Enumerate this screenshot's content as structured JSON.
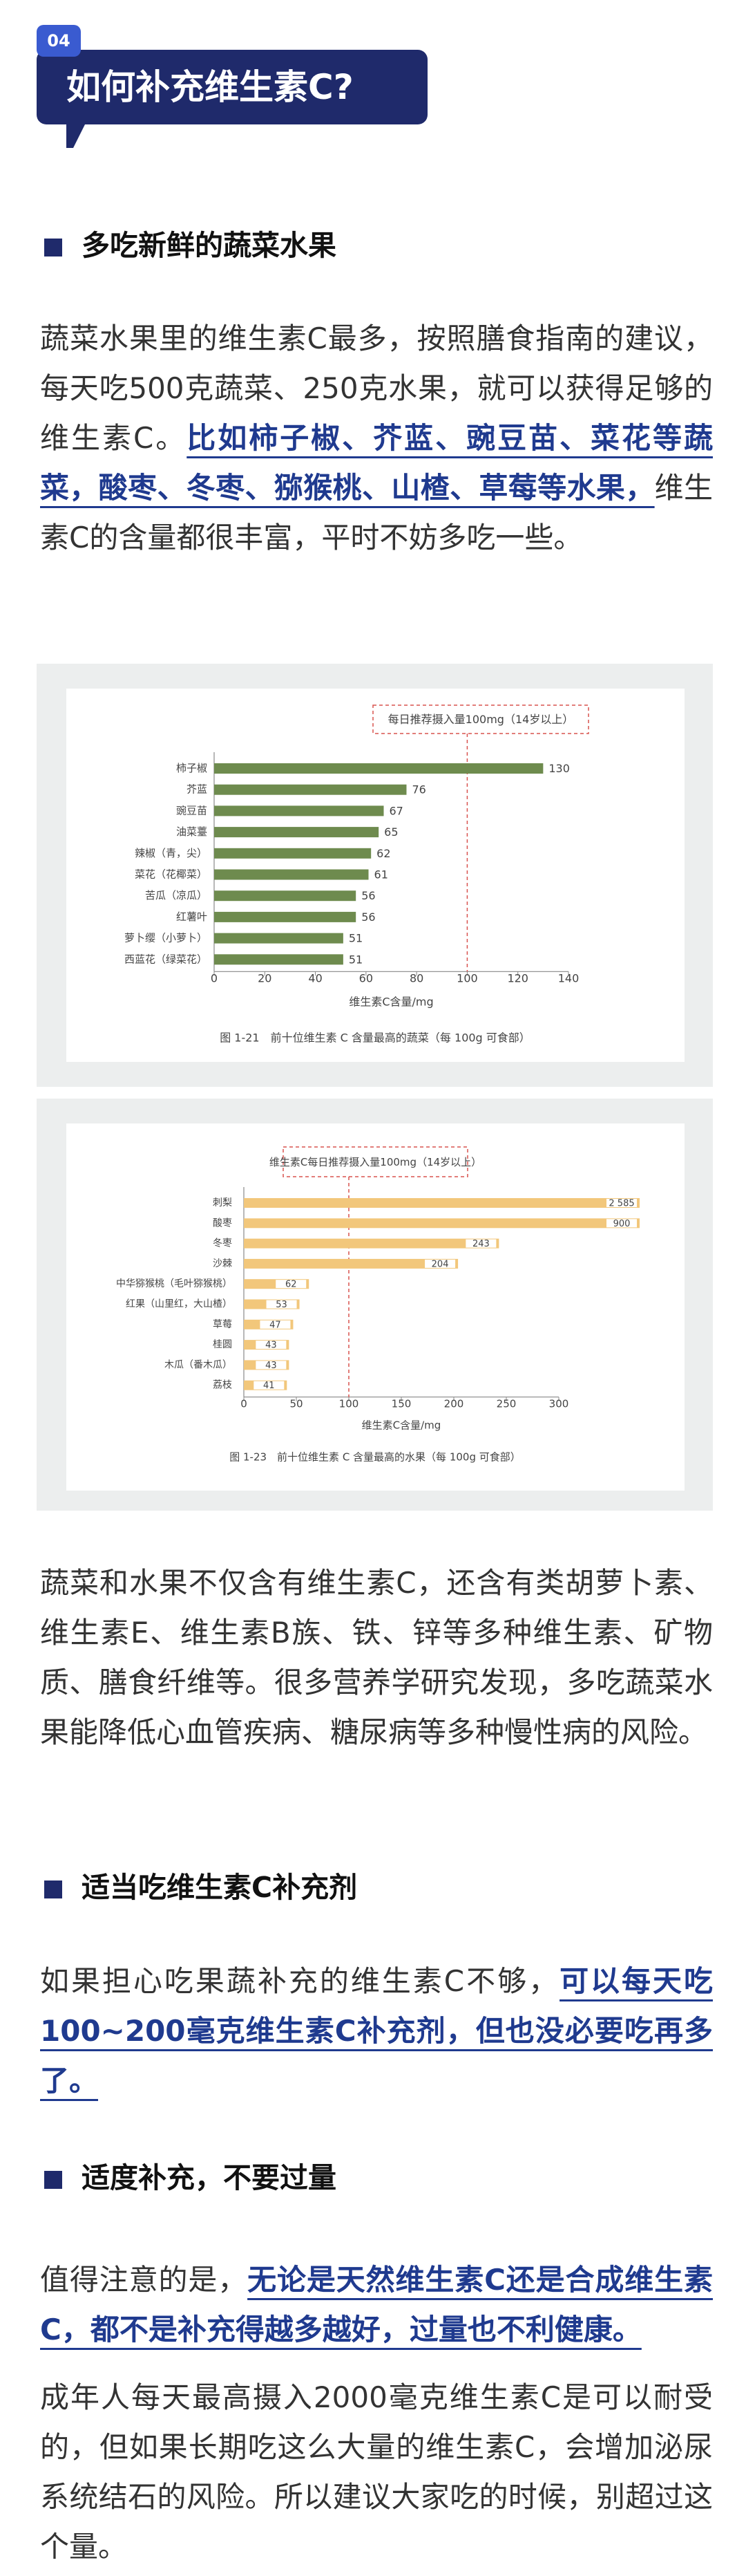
{
  "header": {
    "badge": "04",
    "title": "如何补充维生素C?"
  },
  "sections": [
    {
      "heading": "多吃新鲜的蔬菜水果",
      "paragraphs": [
        [
          {
            "text": "蔬菜水果里的维生素C最多，按照膳食指南的建议，每天吃500克蔬菜、250克水果，就可以获得足够的维生素C。",
            "emphasis": false
          },
          {
            "text": "比如柿子椒、芥蓝、豌豆苗、菜花等蔬菜，酸枣、冬枣、猕猴桃、山楂、草莓等水果，",
            "emphasis": true
          },
          {
            "text": "维生素C的含量都很丰富，平时不妨多吃一些。",
            "emphasis": false
          }
        ],
        [
          {
            "text": "蔬菜和水果不仅含有维生素C，还含有类胡萝卜素、维生素E、维生素B族、铁、锌等多种维生素、矿物质、膳食纤维等。很多营养学研究发现，多吃蔬菜水果能降低心血管疾病、糖尿病等多种慢性病的风险。",
            "emphasis": false
          }
        ]
      ]
    },
    {
      "heading": "适当吃维生素C补充剂",
      "paragraphs": [
        [
          {
            "text": "如果担心吃果蔬补充的维生素C不够，",
            "emphasis": false
          },
          {
            "text": "可以每天吃100~200毫克维生素C补充剂，但也没必要吃再多了。",
            "emphasis": true
          }
        ]
      ]
    },
    {
      "heading": "适度补充，不要过量",
      "paragraphs": [
        [
          {
            "text": "值得注意的是，",
            "emphasis": false
          },
          {
            "text": "无论是天然维生素C还是合成维生素C，都不是补充得越多越好，过量也不利健康。",
            "emphasis": true
          }
        ],
        [
          {
            "text": "成年人每天最高摄入2000毫克维生素C是可以耐受的，但如果长期吃这么大量的维生素C，会增加泌尿系统结石的风险。所以建议大家吃的时候，别超过这个量。",
            "emphasis": false
          }
        ]
      ]
    }
  ],
  "figures": [
    {
      "type": "bar",
      "orientation": "horizontal",
      "annotation": "每日推荐摄入量100mg（14岁以上）",
      "reference_line": 100,
      "categories": [
        "柿子椒",
        "芥蓝",
        "豌豆苗",
        "油菜薹",
        "辣椒（青，尖）",
        "菜花（花椰菜）",
        "苦瓜（凉瓜）",
        "红薯叶",
        "萝卜缨（小萝卜）",
        "西蓝花（绿菜花）"
      ],
      "values": [
        130,
        76,
        67,
        65,
        62,
        61,
        56,
        56,
        51,
        51
      ],
      "color": "#6e8b4e",
      "xlim": [
        0,
        140
      ],
      "xticks": [
        0,
        20,
        40,
        60,
        80,
        100,
        120,
        140
      ],
      "xlabel": "维生素C含量/mg",
      "caption": "图 1-21　前十位维生素 C 含量最高的蔬菜（每 100g 可食部）"
    },
    {
      "type": "bar",
      "orientation": "horizontal",
      "annotation": "维生素C每日推荐摄入量100mg（14岁以上）",
      "reference_line": 100,
      "categories": [
        "刺梨",
        "酸枣",
        "冬枣",
        "沙棘",
        "中华猕猴桃（毛叶猕猴桃）",
        "红果（山里红，大山楂）",
        "草莓",
        "桂圆",
        "木瓜（番木瓜）",
        "荔枝"
      ],
      "values": [
        2585,
        900,
        243,
        204,
        62,
        53,
        47,
        43,
        43,
        41
      ],
      "value_labels": [
        "2 585",
        "900",
        "243",
        "204",
        "62",
        "53",
        "47",
        "43",
        "43",
        "41"
      ],
      "color": "#f2c77b",
      "xlim": [
        0,
        300
      ],
      "xticks": [
        0,
        50,
        100,
        150,
        200,
        250,
        300
      ],
      "xlabel": "维生素C含量/mg",
      "caption": "图 1-23　前十位维生素 C 含量最高的水果（每 100g 可食部）"
    }
  ]
}
